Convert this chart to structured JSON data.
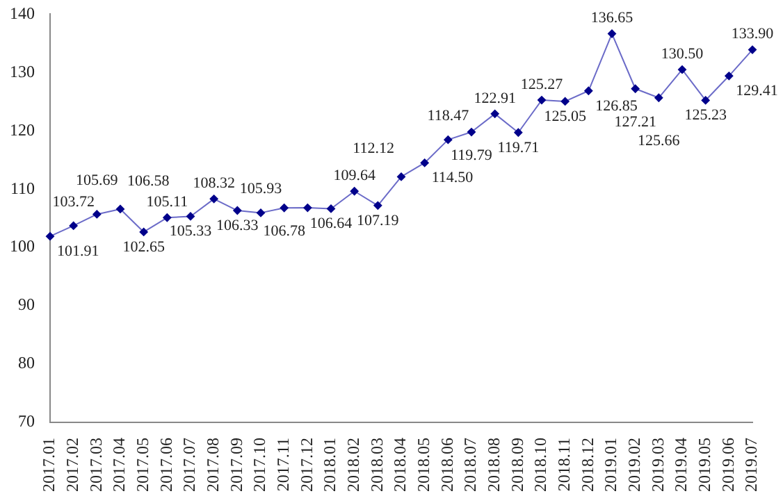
{
  "chart_data": {
    "type": "line",
    "categories": [
      "2017.01",
      "2017.02",
      "2017.03",
      "2017.04",
      "2017.05",
      "2017.06",
      "2017.07",
      "2017.08",
      "2017.09",
      "2017.10",
      "2017.11",
      "2017.12",
      "2018.01",
      "2018.02",
      "2018.03",
      "2018.04",
      "2018.05",
      "2018.06",
      "2018.07",
      "2018.08",
      "2018.09",
      "2018.10",
      "2018.11",
      "2018.12",
      "2019.01",
      "2019.02",
      "2019.03",
      "2019.04",
      "2019.05",
      "2019.06",
      "2019.07"
    ],
    "series": [
      {
        "color": "#00008b",
        "values": [
          101.91,
          103.72,
          105.69,
          106.58,
          102.65,
          105.11,
          105.33,
          108.32,
          106.33,
          105.93,
          106.78,
          106.8,
          106.64,
          109.64,
          107.19,
          112.12,
          114.5,
          118.47,
          119.79,
          122.91,
          119.71,
          125.27,
          125.05,
          126.85,
          136.65,
          127.21,
          125.66,
          130.5,
          125.23,
          129.41,
          133.9
        ],
        "value_labels": [
          "101.91",
          "103.72",
          "105.69",
          "106.58",
          "102.65",
          "105.11",
          "105.33",
          "108.32",
          "106.33",
          "105.93",
          "106.78",
          null,
          "106.64",
          "109.64",
          "107.19",
          "112.12",
          "114.50",
          "118.47",
          "119.79",
          "122.91",
          "119.71",
          "125.27",
          "125.05",
          "126.85",
          "136.65",
          "127.21",
          "125.66",
          "130.50",
          "125.23",
          "129.41",
          "133.90"
        ]
      }
    ],
    "ylim": [
      70,
      140
    ],
    "yticks": [
      70,
      80,
      90,
      100,
      110,
      120,
      130,
      140
    ],
    "grid": false,
    "legend": false,
    "marker": "diamond",
    "line_style": "solid"
  }
}
